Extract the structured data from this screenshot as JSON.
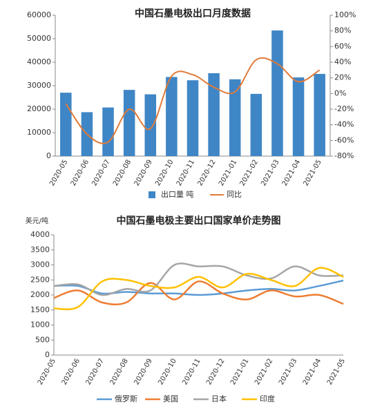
{
  "chart_data": [
    {
      "type": "bar",
      "title": "中国石墨电极出口月度数据",
      "categories": [
        "2020-05",
        "2020-06",
        "2020-07",
        "2020-08",
        "2020-09",
        "2020-10",
        "2020-11",
        "2020-12",
        "2021-01",
        "2021-02",
        "2021-03",
        "2021-04",
        "2021-05"
      ],
      "series": [
        {
          "name": "出口量  吨",
          "type": "bar",
          "color": "#3f86c6",
          "values": [
            27000,
            18700,
            20700,
            28200,
            26300,
            33700,
            32300,
            35300,
            32700,
            26500,
            53500,
            33500,
            35000
          ]
        },
        {
          "name": "同比",
          "type": "line",
          "axis": "y2",
          "color": "#e07b39",
          "values": [
            -13,
            -52,
            -62,
            -20,
            -45,
            22,
            24,
            8,
            2,
            43,
            38,
            15,
            30
          ]
        }
      ],
      "ylim": [
        0,
        60000
      ],
      "yticks": [
        0,
        10000,
        20000,
        30000,
        40000,
        50000,
        60000
      ],
      "y2lim": [
        -80,
        100
      ],
      "y2ticks": [
        {
          "value": -80,
          "label": "-80%"
        },
        {
          "value": -60,
          "label": "-60%"
        },
        {
          "value": -40,
          "label": "-40%"
        },
        {
          "value": -20,
          "label": "-20%"
        },
        {
          "value": 0,
          "label": "0%"
        },
        {
          "value": 20,
          "label": "20%"
        },
        {
          "value": 40,
          "label": "40%"
        },
        {
          "value": 60,
          "label": "60%"
        },
        {
          "value": 80,
          "label": "80%"
        },
        {
          "value": 100,
          "label": "100%"
        }
      ],
      "legend": "bottom"
    },
    {
      "type": "line",
      "title": "中国石墨电极主要出口国家单价走势图",
      "y_label": "美元/吨",
      "categories": [
        "2020-05",
        "2020-06",
        "2020-07",
        "2020-08",
        "2020-09",
        "2020-10",
        "2020-11",
        "2020-12",
        "2021-01",
        "2021-02",
        "2021-03",
        "2021-04",
        "2021-05"
      ],
      "series": [
        {
          "name": "俄罗斯",
          "color": "#5b9bd5",
          "values": [
            2300,
            2300,
            2050,
            2100,
            2050,
            2050,
            2000,
            2050,
            2150,
            2200,
            2150,
            2300,
            2480
          ]
        },
        {
          "name": "美国",
          "color": "#ed7d31",
          "values": [
            1900,
            2150,
            1750,
            1750,
            2400,
            1850,
            2450,
            2050,
            1850,
            2150,
            1950,
            2000,
            1700
          ]
        },
        {
          "name": "日本",
          "color": "#a5a5a5",
          "values": [
            2300,
            2350,
            2000,
            2200,
            2150,
            3000,
            2950,
            2950,
            2650,
            2550,
            2950,
            2650,
            2650
          ]
        },
        {
          "name": "印度",
          "color": "#ffc000",
          "values": [
            1550,
            1600,
            2450,
            2500,
            2300,
            2250,
            2600,
            2250,
            2700,
            2500,
            2300,
            2900,
            2600
          ]
        }
      ],
      "ylim": [
        0,
        4000
      ],
      "yticks": [
        0,
        500,
        1000,
        1500,
        2000,
        2500,
        3000,
        3500,
        4000
      ],
      "legend": "bottom"
    }
  ]
}
